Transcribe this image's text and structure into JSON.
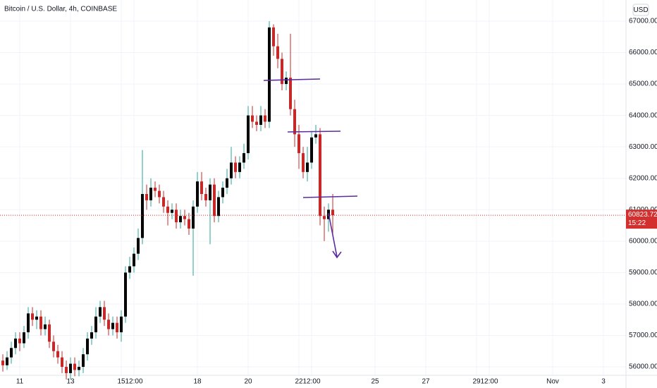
{
  "chart_data": {
    "type": "candlestick",
    "title": "Bitcoin / U.S. Dollar, 4h, COINBASE",
    "currency": "USD",
    "countdown": "15:22",
    "open": [
      56200,
      56050,
      56300,
      56600,
      56900,
      56750,
      57100,
      57700,
      57500,
      57600,
      57200,
      57350,
      56800,
      56500,
      56300,
      56000,
      55800,
      56100,
      55900,
      56000,
      56400,
      56900,
      57100,
      57600,
      57900,
      57500,
      57200,
      57400,
      57100,
      57600,
      59000,
      59200,
      59600,
      60100,
      61500,
      61300,
      61700,
      61600,
      61400,
      61100,
      60900,
      61000,
      60600,
      60800,
      60700,
      60400,
      61100,
      61900,
      61500,
      61300,
      61800,
      60800,
      61400,
      61700,
      62000,
      62500,
      62200,
      62500,
      62800,
      64000,
      63800,
      63700,
      64000,
      63800,
      66800,
      66200,
      65800,
      65000,
      65200,
      64200,
      63400,
      62800,
      62200,
      62500,
      63300,
      63400,
      60800,
      60700,
      61000
    ],
    "high": [
      56400,
      56500,
      56800,
      57100,
      57100,
      57300,
      57900,
      57900,
      57800,
      57800,
      57600,
      57500,
      57000,
      56700,
      56500,
      56200,
      56300,
      56300,
      56200,
      56600,
      57100,
      57300,
      57900,
      58100,
      58100,
      57700,
      57600,
      57600,
      57800,
      59200,
      59500,
      59800,
      60400,
      62900,
      61800,
      62000,
      61900,
      61800,
      61600,
      61300,
      61200,
      61200,
      61000,
      61000,
      60900,
      61300,
      62200,
      62200,
      61700,
      62000,
      62000,
      61600,
      61900,
      62300,
      63000,
      62700,
      62700,
      63100,
      64300,
      64300,
      64000,
      64300,
      64200,
      67000,
      66900,
      66600,
      66000,
      65400,
      66600,
      64500,
      63700,
      63000,
      63000,
      63500,
      63700,
      63600,
      61100,
      61200,
      61500
    ],
    "low": [
      55850,
      55900,
      56100,
      56400,
      56500,
      56600,
      56900,
      57300,
      57200,
      57000,
      57000,
      56600,
      56300,
      56100,
      55800,
      55600,
      55600,
      55700,
      55700,
      55800,
      56200,
      56700,
      56900,
      57400,
      57300,
      57000,
      57000,
      56900,
      56800,
      57400,
      58800,
      59000,
      59400,
      59900,
      61000,
      61100,
      61400,
      61200,
      60900,
      60500,
      60700,
      60400,
      60400,
      60500,
      60200,
      58900,
      60900,
      61300,
      61100,
      59900,
      60600,
      60600,
      61200,
      61500,
      61800,
      62000,
      62000,
      62300,
      62600,
      63600,
      63500,
      63500,
      63600,
      63600,
      65900,
      65500,
      64800,
      64800,
      64000,
      63000,
      62300,
      62000,
      61900,
      62300,
      63100,
      60500,
      60000,
      60300,
      60200
    ],
    "close": [
      56050,
      56300,
      56600,
      56900,
      56750,
      57100,
      57700,
      57500,
      57600,
      57200,
      57350,
      56800,
      56500,
      56300,
      56000,
      55800,
      56100,
      55900,
      56000,
      56400,
      56900,
      57100,
      57600,
      57900,
      57500,
      57200,
      57400,
      57100,
      57600,
      59000,
      59200,
      59600,
      60100,
      61500,
      61300,
      61700,
      61600,
      61400,
      61100,
      60900,
      61000,
      60600,
      60800,
      60700,
      60400,
      61100,
      61900,
      61500,
      61300,
      61800,
      60800,
      61400,
      61700,
      62000,
      62500,
      62200,
      62500,
      62800,
      64000,
      63800,
      63700,
      64000,
      63800,
      66800,
      66200,
      65800,
      65000,
      65200,
      64200,
      63400,
      62800,
      62200,
      62500,
      63300,
      63400,
      60800,
      60700,
      61000,
      60823.72
    ],
    "xlim": [
      -0.67,
      147.33
    ],
    "xticks": [
      {
        "value": 4,
        "label": "11"
      },
      {
        "value": 16,
        "label": "13"
      },
      {
        "value": 28,
        "label": "15"
      },
      {
        "value": 31,
        "label": "12:00"
      },
      {
        "value": 46,
        "label": "18"
      },
      {
        "value": 58,
        "label": "20"
      },
      {
        "value": 70,
        "label": "22"
      },
      {
        "value": 73,
        "label": "12:00"
      },
      {
        "value": 88,
        "label": "25"
      },
      {
        "value": 100,
        "label": "27"
      },
      {
        "value": 112,
        "label": "29"
      },
      {
        "value": 115,
        "label": "12:00"
      },
      {
        "value": 130,
        "label": "Nov"
      },
      {
        "value": 142,
        "label": "3"
      }
    ],
    "ylim": [
      55731,
      67673
    ],
    "yticks": [
      {
        "value": 56000,
        "label": "56000.00"
      },
      {
        "value": 57000,
        "label": "57000.00"
      },
      {
        "value": 58000,
        "label": "58000.00"
      },
      {
        "value": 59000,
        "label": "59000.00"
      },
      {
        "value": 60000,
        "label": "60000.00"
      },
      {
        "value": 61000,
        "label": "61000.00"
      },
      {
        "value": 62000,
        "label": "62000.00"
      },
      {
        "value": 63000,
        "label": "63000.00"
      },
      {
        "value": 64000,
        "label": "64000.00"
      },
      {
        "value": 65000,
        "label": "65000.00"
      },
      {
        "value": 66000,
        "label": "66000.00"
      },
      {
        "value": 67000,
        "label": "67000.00"
      }
    ],
    "grid": true,
    "up_color": "#000000",
    "up_wick_color": "#26a69a",
    "down_color": "#c62828",
    "price_line_color": "#d32f2f"
  }
}
